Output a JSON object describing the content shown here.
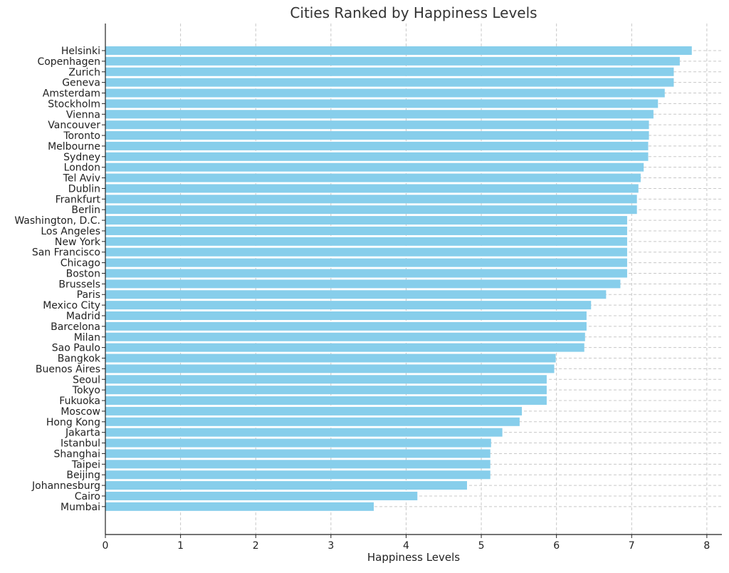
{
  "chart_data": {
    "type": "bar",
    "orientation": "horizontal",
    "title": "Cities Ranked by Happiness Levels",
    "xlabel": "Happiness Levels",
    "ylabel": "",
    "xlim": [
      0,
      8.2
    ],
    "xticks": [
      0,
      1,
      2,
      3,
      4,
      5,
      6,
      7,
      8
    ],
    "grid": true,
    "bar_color": "#87CEEB",
    "categories": [
      "Helsinki",
      "Copenhagen",
      "Zurich",
      "Geneva",
      "Amsterdam",
      "Stockholm",
      "Vienna",
      "Vancouver",
      "Toronto",
      "Melbourne",
      "Sydney",
      "London",
      "Tel Aviv",
      "Dublin",
      "Frankfurt",
      "Berlin",
      "Washington, D.C.",
      "Los Angeles",
      "New York",
      "San Francisco",
      "Chicago",
      "Boston",
      "Brussels",
      "Paris",
      "Mexico City",
      "Madrid",
      "Barcelona",
      "Milan",
      "Sao Paulo",
      "Bangkok",
      "Buenos Aires",
      "Seoul",
      "Tokyo",
      "Fukuoka",
      "Moscow",
      "Hong Kong",
      "Jakarta",
      "Istanbul",
      "Shanghai",
      "Taipei",
      "Beijing",
      "Johannesburg",
      "Cairo",
      "Mumbai"
    ],
    "values": [
      7.8,
      7.64,
      7.56,
      7.56,
      7.44,
      7.35,
      7.29,
      7.23,
      7.23,
      7.22,
      7.22,
      7.16,
      7.12,
      7.09,
      7.07,
      7.07,
      6.94,
      6.94,
      6.94,
      6.94,
      6.94,
      6.94,
      6.85,
      6.66,
      6.46,
      6.4,
      6.4,
      6.38,
      6.37,
      5.99,
      5.97,
      5.87,
      5.87,
      5.87,
      5.54,
      5.51,
      5.28,
      5.13,
      5.12,
      5.12,
      5.12,
      4.81,
      4.15,
      3.57
    ]
  }
}
